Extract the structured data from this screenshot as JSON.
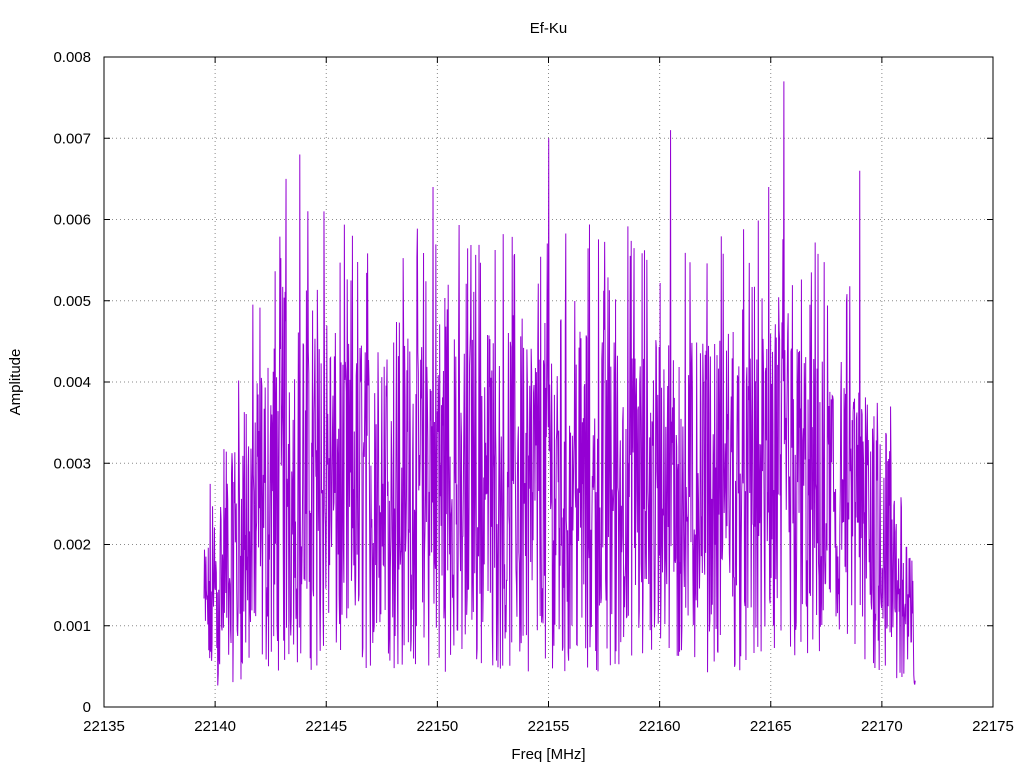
{
  "chart_data": {
    "type": "line",
    "title": "Ef-Ku",
    "xlabel": "Freq [MHz]",
    "ylabel": "Amplitude",
    "xlim": [
      22135,
      22175
    ],
    "ylim": [
      0,
      0.008
    ],
    "x_ticks": [
      "22135",
      "22140",
      "22145",
      "22150",
      "22155",
      "22160",
      "22165",
      "22170",
      "22175"
    ],
    "y_ticks": [
      "0",
      "0.001",
      "0.002",
      "0.003",
      "0.004",
      "0.005",
      "0.006",
      "0.007",
      "0.008"
    ],
    "grid": true,
    "legend": "none",
    "series": [
      {
        "color": "#9400d3",
        "x_start": 22139.5,
        "x_end": 22171.5,
        "peaks": [
          {
            "x": 22143.2,
            "y": 0.0065
          },
          {
            "x": 22143.8,
            "y": 0.0068
          },
          {
            "x": 22144.9,
            "y": 0.0061
          },
          {
            "x": 22149.8,
            "y": 0.0064
          },
          {
            "x": 22155.0,
            "y": 0.007
          },
          {
            "x": 22160.5,
            "y": 0.0071
          },
          {
            "x": 22164.9,
            "y": 0.0064
          },
          {
            "x": 22165.6,
            "y": 0.0077
          },
          {
            "x": 22169.0,
            "y": 0.0066
          }
        ],
        "envelope": [
          {
            "x": 22139.5,
            "y": 0.0012
          },
          {
            "x": 22141.0,
            "y": 0.0021
          },
          {
            "x": 22143.0,
            "y": 0.003
          },
          {
            "x": 22147.0,
            "y": 0.0028
          },
          {
            "x": 22152.0,
            "y": 0.0029
          },
          {
            "x": 22157.0,
            "y": 0.0029
          },
          {
            "x": 22162.0,
            "y": 0.0028
          },
          {
            "x": 22166.0,
            "y": 0.0029
          },
          {
            "x": 22170.0,
            "y": 0.0023
          },
          {
            "x": 22171.5,
            "y": 0.0009
          }
        ]
      }
    ]
  }
}
